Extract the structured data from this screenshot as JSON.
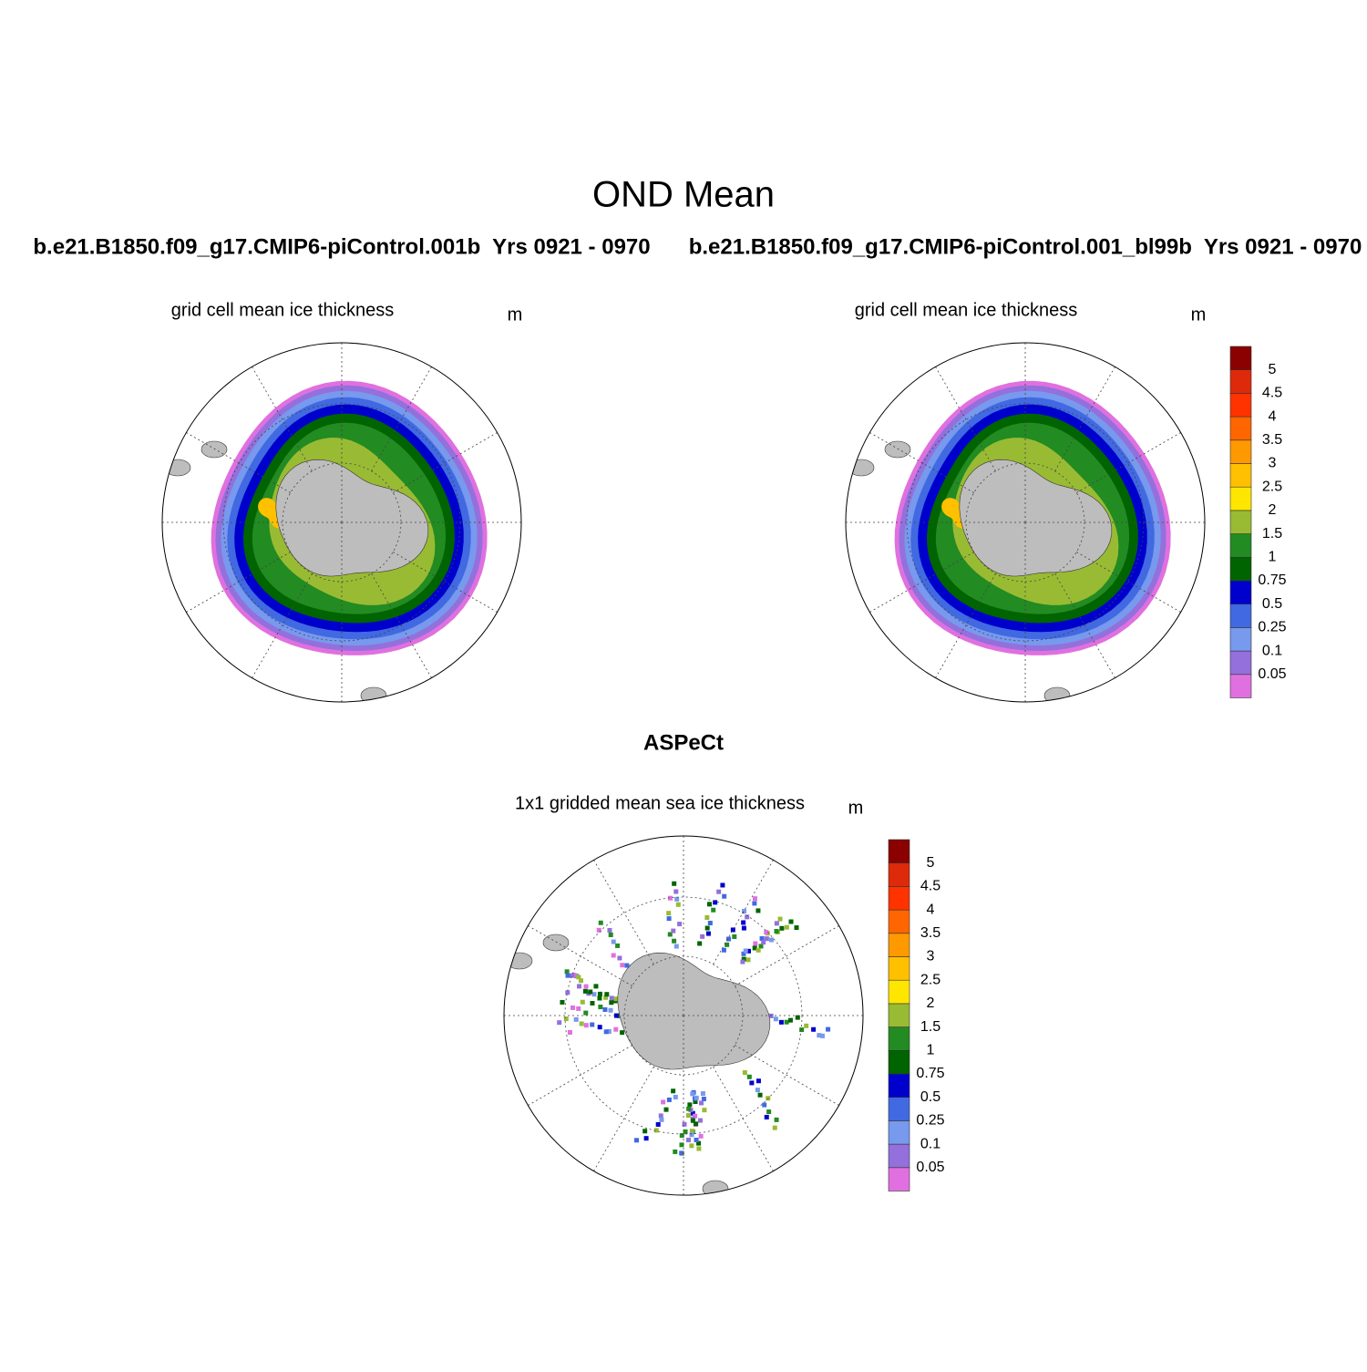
{
  "figure_title": "OND Mean",
  "panels": [
    {
      "title": "b.e21.B1850.f09_g17.CMIP6-piControl.001b  Yrs 0921 - 0970",
      "subtitle": "grid cell mean ice thickness",
      "units": "m"
    },
    {
      "title": "b.e21.B1850.f09_g17.CMIP6-piControl.001_bl99b  Yrs 0921 - 0970",
      "subtitle": "grid cell mean ice thickness",
      "units": "m"
    },
    {
      "title": "ASPeCt",
      "subtitle": "1x1 gridded mean sea ice thickness",
      "units": "m"
    }
  ],
  "colorbar": {
    "levels": [
      0.05,
      0.1,
      0.25,
      0.5,
      0.75,
      1,
      1.5,
      2,
      2.5,
      3,
      3.5,
      4,
      4.5,
      5
    ],
    "colors": [
      "#e070e0",
      "#9370db",
      "#7799ee",
      "#4169e1",
      "#0000cd",
      "#006400",
      "#228b22",
      "#99bb33",
      "#ffe600",
      "#ffc000",
      "#ff9900",
      "#ff6600",
      "#ff3300",
      "#dd2a0a",
      "#8b0000"
    ]
  }
}
